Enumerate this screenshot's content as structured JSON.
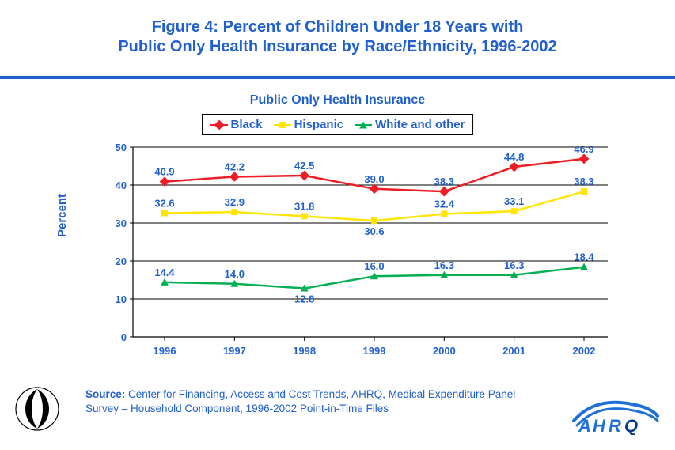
{
  "title_line1": "Figure 4: Percent of Children Under 18 Years with",
  "title_line2": "Public Only Health Insurance by Race/Ethnicity, 1996-2002",
  "chart_title": "Public Only Health Insurance",
  "y_axis_label": "Percent",
  "source_prefix": "Source: ",
  "source_text": "Center for Financing, Access and Cost Trends, AHRQ, Medical Expenditure Panel Survey – Household Component, 1996-2002 Point-in-Time Files",
  "chart": {
    "type": "line",
    "categories": [
      "1996",
      "1997",
      "1998",
      "1999",
      "2000",
      "2001",
      "2002"
    ],
    "ylim": [
      0,
      50
    ],
    "ytick_step": 10,
    "yticks": [
      0,
      10,
      20,
      30,
      40,
      50
    ],
    "grid_color": "#000000",
    "axis_color": "#000000",
    "background_color": "#ffffff",
    "tick_label_color": "#1f5fcf",
    "tick_fontsize": 13,
    "data_label_fontsize": 13,
    "line_width": 2.5,
    "series": [
      {
        "name": "Black",
        "color": "#ee1c25",
        "marker": "diamond",
        "values": [
          40.9,
          42.2,
          42.5,
          39.0,
          38.3,
          44.8,
          46.9
        ],
        "label_pos": [
          "above",
          "above",
          "above",
          "above",
          "above",
          "above",
          "above"
        ]
      },
      {
        "name": "Hispanic",
        "color": "#ffe600",
        "marker": "square",
        "values": [
          32.6,
          32.9,
          31.8,
          30.6,
          32.4,
          33.1,
          38.3
        ],
        "label_pos": [
          "above",
          "above",
          "above",
          "below",
          "above",
          "above",
          "above"
        ]
      },
      {
        "name": "White and other",
        "color": "#00b050",
        "marker": "triangle",
        "values": [
          14.4,
          14.0,
          12.8,
          16.0,
          16.3,
          16.3,
          18.4
        ],
        "label_pos": [
          "above",
          "above",
          "below",
          "above",
          "above",
          "above",
          "above"
        ]
      }
    ]
  },
  "legend": {
    "items": [
      {
        "label": "Black",
        "color": "#ee1c25",
        "marker": "diamond"
      },
      {
        "label": "Hispanic",
        "color": "#ffe600",
        "marker": "square"
      },
      {
        "label": "White and other",
        "color": "#00b050",
        "marker": "triangle"
      }
    ]
  },
  "colors": {
    "accent": "#1f5fcf",
    "background": "#ffffff"
  }
}
